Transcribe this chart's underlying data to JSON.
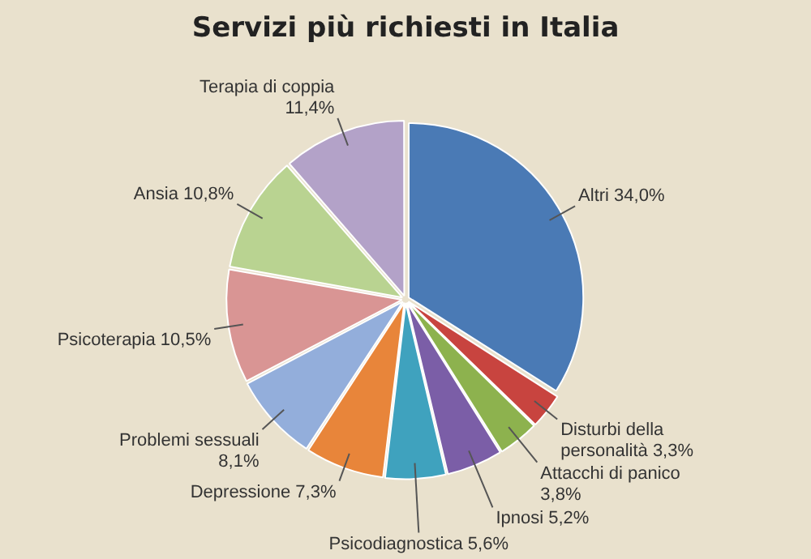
{
  "chart_data": {
    "type": "pie",
    "title": "Servizi più richiesti in Italia",
    "categories": [
      "Altri",
      "Disturbi della personalità",
      "Attacchi di panico",
      "Ipnosi",
      "Psicodiagnostica",
      "Depressione",
      "Problemi sessuali",
      "Psicoterapia",
      "Ansia",
      "Terapia di coppia"
    ],
    "values": [
      34.0,
      3.3,
      3.8,
      5.2,
      5.6,
      7.3,
      8.1,
      10.5,
      10.8,
      11.4
    ],
    "value_labels": [
      "34,0%",
      "3,3%",
      "3,8%",
      "5,2%",
      "5,6%",
      "7,3%",
      "8,1%",
      "10,5%",
      "10,8%",
      "11,4%"
    ],
    "colors": [
      "#4a7ab5",
      "#c8443f",
      "#8db24e",
      "#7b5ea7",
      "#3fa2be",
      "#e8853a",
      "#93aedb",
      "#d99594",
      "#b9d391",
      "#b3a2c8"
    ],
    "legend": false
  }
}
